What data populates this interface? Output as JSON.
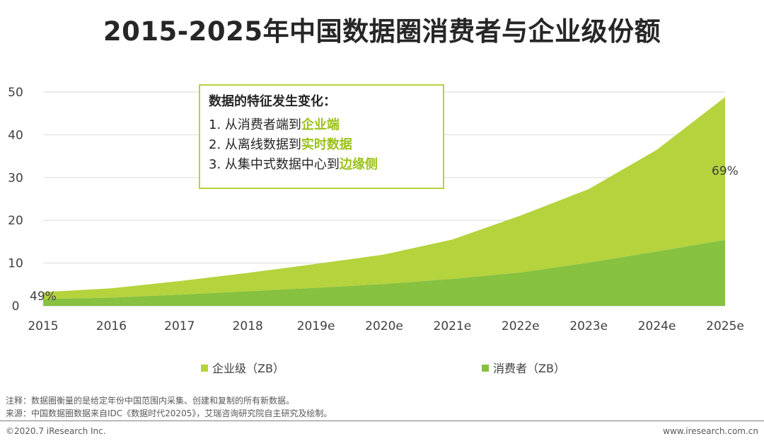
{
  "title": "2015-2025年中国数据圈消费者与企业级份额",
  "colors": {
    "enterprise": "#b5d33d",
    "consumer": "#86c140",
    "accent": "#9bc21a"
  },
  "callout": {
    "heading": "数据的特征发生变化：",
    "items": [
      {
        "prefix": "1.  从消费者端到",
        "highlight": "企业端"
      },
      {
        "prefix": "2.  从离线数据到",
        "highlight": "实时数据"
      },
      {
        "prefix": "3.  从集中式数据中心到",
        "highlight": "边缘侧"
      }
    ]
  },
  "chart_data": {
    "type": "area",
    "stacked": true,
    "categories": [
      "2015",
      "2016",
      "2017",
      "2018",
      "2019e",
      "2020e",
      "2021e",
      "2022e",
      "2023e",
      "2024e",
      "2025e"
    ],
    "series": [
      {
        "name": "消费者（ZB）",
        "values": [
          1.6,
          1.9,
          2.6,
          3.4,
          4.2,
          5.1,
          6.3,
          7.8,
          10.1,
          12.7,
          15.4
        ]
      },
      {
        "name": "企业级（ZB）",
        "values": [
          1.6,
          2.2,
          3.2,
          4.3,
          5.6,
          6.9,
          9.2,
          13.3,
          17.2,
          23.8,
          33.4
        ]
      }
    ],
    "yticks": [
      "0",
      "10",
      "20",
      "30",
      "40",
      "50"
    ],
    "ylim": [
      0,
      50
    ],
    "grid": true,
    "annotations": {
      "start_pct": "49%",
      "end_pct": "69%"
    },
    "legend_position": "bottom"
  },
  "legend": {
    "enterprise": "企业级（ZB）",
    "consumer": "消费者（ZB）"
  },
  "notes": {
    "note": "注释：数据圈衡量的是给定年份中国范围内采集、创建和复制的所有新数据。",
    "source": "来源：中国数据圈数据来自IDC《数据时代20205》，艾瑞咨询研究院自主研究及绘制。"
  },
  "footer": {
    "copyright": "©2020.7 iResearch Inc.",
    "website": "www.iresearch.com.cn"
  }
}
